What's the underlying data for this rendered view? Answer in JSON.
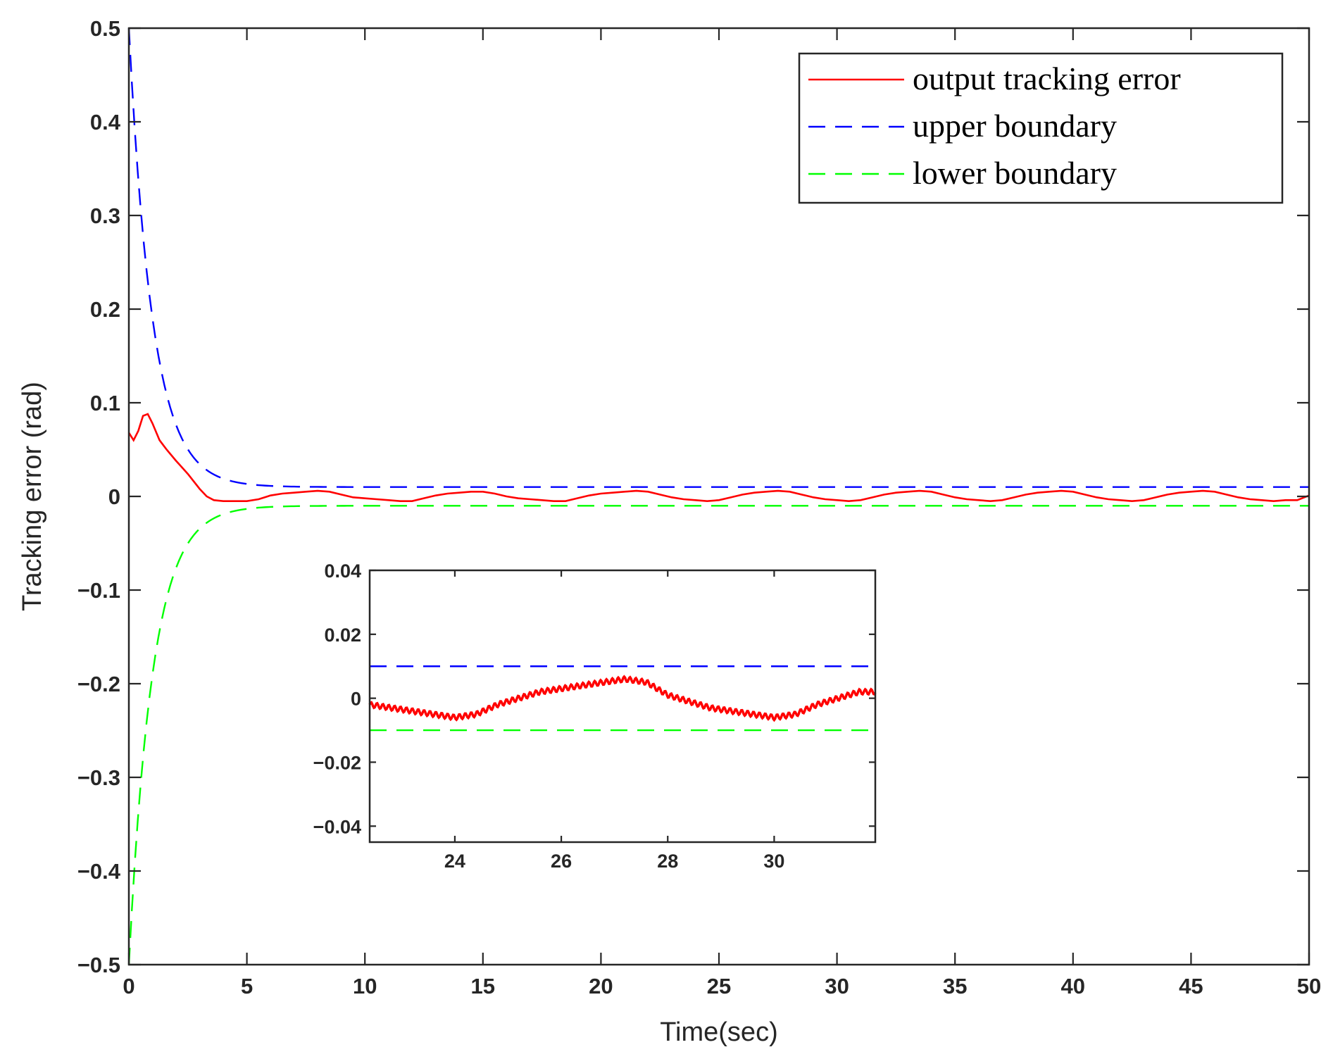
{
  "chart_data": [
    {
      "id": "main",
      "type": "line",
      "xlabel": "Time(sec)",
      "ylabel": "Tracking error (rad)",
      "xlim": [
        0,
        50
      ],
      "ylim": [
        -0.5,
        0.5
      ],
      "xticks": [
        0,
        5,
        10,
        15,
        20,
        25,
        30,
        35,
        40,
        45,
        50
      ],
      "xtick_labels": [
        "0",
        "5",
        "10",
        "15",
        "20",
        "25",
        "30",
        "35",
        "40",
        "45",
        "50"
      ],
      "yticks": [
        0.5,
        0.4,
        0.3,
        0.2,
        0.1,
        0,
        -0.1,
        -0.2,
        -0.3,
        -0.4,
        -0.5
      ],
      "ytick_labels": [
        "0.5",
        "0.4",
        "0.3",
        "0.2",
        "0.1",
        "0",
        "−0.1",
        "−0.2",
        "−0.3",
        "−0.4",
        "−0.5"
      ],
      "grid": false,
      "legend_position": "top-right",
      "series": [
        {
          "name": "output tracking error",
          "color": "#ff0000",
          "style": "solid",
          "x": [
            0,
            0.2,
            0.4,
            0.6,
            0.8,
            1.0,
            1.3,
            1.6,
            2.0,
            2.5,
            3.0,
            3.3,
            3.6,
            4.0,
            4.5,
            5.0,
            5.5,
            6.0,
            6.5,
            7.0,
            7.5,
            8.0,
            8.5,
            9.0,
            9.5,
            10.0,
            10.5,
            11.0,
            11.5,
            12.0,
            12.5,
            13.0,
            13.5,
            14.0,
            14.5,
            15.0,
            15.5,
            16.0,
            16.5,
            17.0,
            17.5,
            18.0,
            18.5,
            19.0,
            19.5,
            20.0,
            20.5,
            21.0,
            21.5,
            22.0,
            22.5,
            23.0,
            23.5,
            24.0,
            24.5,
            25.0,
            25.5,
            26.0,
            26.5,
            27.0,
            27.5,
            28.0,
            28.5,
            29.0,
            29.5,
            30.0,
            30.5,
            31.0,
            31.5,
            32.0,
            32.5,
            33.0,
            33.5,
            34.0,
            34.5,
            35.0,
            35.5,
            36.0,
            36.5,
            37.0,
            37.5,
            38.0,
            38.5,
            39.0,
            39.5,
            40.0,
            40.5,
            41.0,
            41.5,
            42.0,
            42.5,
            43.0,
            43.5,
            44.0,
            44.5,
            45.0,
            45.5,
            46.0,
            46.5,
            47.0,
            47.5,
            48.0,
            48.5,
            49.0,
            49.5,
            50.0
          ],
          "y": [
            0.068,
            0.06,
            0.07,
            0.086,
            0.088,
            0.078,
            0.06,
            0.05,
            0.038,
            0.024,
            0.008,
            0.0,
            -0.004,
            -0.005,
            -0.005,
            -0.005,
            -0.003,
            0.001,
            0.003,
            0.004,
            0.005,
            0.006,
            0.005,
            0.002,
            -0.001,
            -0.002,
            -0.003,
            -0.004,
            -0.005,
            -0.005,
            -0.002,
            0.001,
            0.003,
            0.004,
            0.005,
            0.005,
            0.003,
            0.0,
            -0.002,
            -0.003,
            -0.004,
            -0.005,
            -0.005,
            -0.002,
            0.001,
            0.003,
            0.004,
            0.005,
            0.006,
            0.005,
            0.002,
            -0.001,
            -0.003,
            -0.004,
            -0.005,
            -0.004,
            -0.001,
            0.002,
            0.004,
            0.005,
            0.006,
            0.005,
            0.002,
            -0.001,
            -0.003,
            -0.004,
            -0.005,
            -0.004,
            -0.001,
            0.002,
            0.004,
            0.005,
            0.006,
            0.005,
            0.002,
            -0.001,
            -0.003,
            -0.004,
            -0.005,
            -0.004,
            -0.001,
            0.002,
            0.004,
            0.005,
            0.006,
            0.005,
            0.002,
            -0.001,
            -0.003,
            -0.004,
            -0.005,
            -0.004,
            -0.001,
            0.002,
            0.004,
            0.005,
            0.006,
            0.005,
            0.002,
            -0.001,
            -0.003,
            -0.004,
            -0.005,
            -0.004,
            -0.004,
            0.001
          ]
        },
        {
          "name": "upper boundary",
          "color": "#0000ff",
          "style": "dashed",
          "formula": "(0.5-0.01)*exp(-t)+0.01"
        },
        {
          "name": "lower boundary",
          "color": "#00ff00",
          "style": "dashed",
          "formula": "-((0.5-0.01)*exp(-t)+0.01)"
        }
      ]
    },
    {
      "id": "inset",
      "type": "line",
      "xlim": [
        22.4,
        31.9
      ],
      "ylim": [
        -0.045,
        0.04
      ],
      "xticks": [
        24,
        26,
        28,
        30
      ],
      "xtick_labels": [
        "24",
        "26",
        "28",
        "30"
      ],
      "yticks": [
        0.04,
        0.02,
        0,
        -0.02,
        -0.04
      ],
      "ytick_labels": [
        "0.04",
        "0.02",
        "0",
        "−0.02",
        "−0.04"
      ],
      "series": [
        {
          "name": "output tracking error",
          "color": "#ff0000",
          "style": "solid",
          "x": [
            22.4,
            22.8,
            23.2,
            23.6,
            24.0,
            24.4,
            24.8,
            25.2,
            25.6,
            26.0,
            26.4,
            26.8,
            27.2,
            27.6,
            28.0,
            28.4,
            28.8,
            29.2,
            29.6,
            30.0,
            30.4,
            30.8,
            31.2,
            31.6,
            31.9
          ],
          "y": [
            -0.002,
            -0.003,
            -0.004,
            -0.005,
            -0.006,
            -0.005,
            -0.002,
            0.0,
            0.002,
            0.003,
            0.004,
            0.005,
            0.006,
            0.005,
            0.001,
            -0.001,
            -0.003,
            -0.004,
            -0.005,
            -0.006,
            -0.005,
            -0.002,
            0.0,
            0.002,
            0.002
          ],
          "oscillation_amplitude": 0.0008
        },
        {
          "name": "upper boundary",
          "color": "#0000ff",
          "style": "dashed",
          "x": [
            22.4,
            31.9
          ],
          "y": [
            0.01,
            0.01
          ]
        },
        {
          "name": "lower boundary",
          "color": "#00ff00",
          "style": "dashed",
          "x": [
            22.4,
            31.9
          ],
          "y": [
            -0.01,
            -0.01
          ]
        }
      ]
    }
  ]
}
